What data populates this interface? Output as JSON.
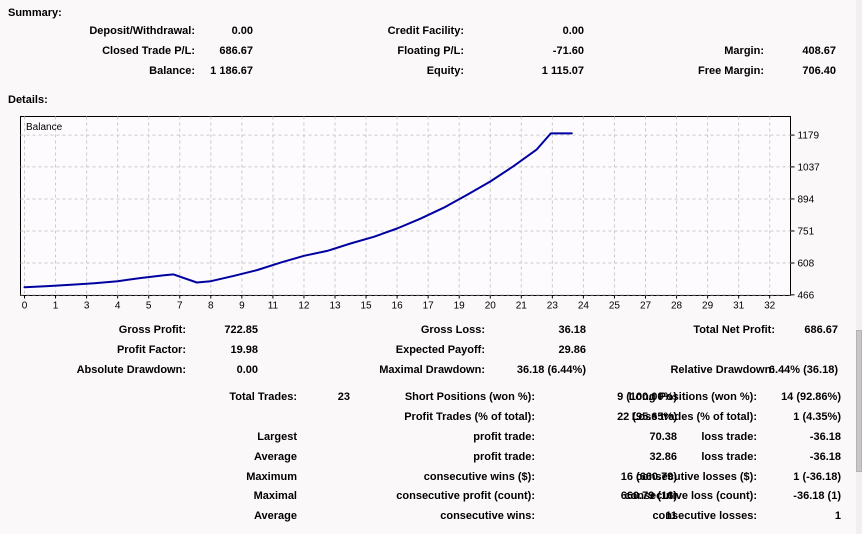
{
  "colors": {
    "curve": "#0000a0",
    "grid": "#c9c9c9",
    "plot_bg": "#fdfbfd",
    "plot_border": "#000000",
    "page_bg": "#fbf8fa"
  },
  "summary": {
    "heading": "Summary:",
    "rows": [
      [
        "Deposit/Withdrawal:",
        "0.00",
        "Credit Facility:",
        "0.00",
        "",
        ""
      ],
      [
        "Closed Trade P/L:",
        "686.67",
        "Floating P/L:",
        "-71.60",
        "Margin:",
        "408.67"
      ],
      [
        "Balance:",
        "1 186.67",
        "Equity:",
        "1 115.07",
        "Free Margin:",
        "706.40"
      ]
    ]
  },
  "details": {
    "heading": "Details:"
  },
  "stats_top": {
    "rows": [
      [
        "Gross Profit:",
        "722.85",
        "Gross Loss:",
        "36.18",
        "Total Net Profit:",
        "686.67"
      ],
      [
        "Profit Factor:",
        "19.98",
        "Expected Payoff:",
        "29.86",
        "",
        ""
      ],
      [
        "Absolute Drawdown:",
        "0.00",
        "Maximal Drawdown:",
        "36.18 (6.44%)",
        "Relative Drawdown:",
        "6.44% (36.18)"
      ]
    ]
  },
  "stats_bottom": {
    "rows": [
      [
        "Total Trades:",
        "23",
        "Short Positions (won %):",
        "9 (100.00%)",
        "Long Positions (won %):",
        "14 (92.86%)"
      ],
      [
        "",
        "",
        "Profit Trades (% of total):",
        "22 (95.65%)",
        "Loss trades (% of total):",
        "1 (4.35%)"
      ],
      [
        "Largest",
        "",
        "profit trade:",
        "70.38",
        "loss trade:",
        "-36.18"
      ],
      [
        "Average",
        "",
        "profit trade:",
        "32.86",
        "loss trade:",
        "-36.18"
      ],
      [
        "Maximum",
        "",
        "consecutive wins ($):",
        "16 (660.79)",
        "consecutive losses ($):",
        "1 (-36.18)"
      ],
      [
        "Maximal",
        "",
        "consecutive profit (count):",
        "660.79 (16)",
        "consecutive loss (count):",
        "-36.18 (1)"
      ],
      [
        "Average",
        "",
        "consecutive wins:",
        "11",
        "consecutive losses:",
        "1"
      ]
    ]
  },
  "chart_data": {
    "type": "line",
    "title": "Balance",
    "legend_position": "top-left-inside",
    "grid": true,
    "xlim": [
      0,
      32
    ],
    "ylim": [
      463,
      1262
    ],
    "x_tick_labels": [
      "0",
      "1",
      "3",
      "4",
      "5",
      "7",
      "8",
      "9",
      "11",
      "12",
      "13",
      "15",
      "16",
      "17",
      "19",
      "20",
      "21",
      "23",
      "24",
      "25",
      "27",
      "28",
      "29",
      "31",
      "32"
    ],
    "y_tick_values": [
      1179,
      1037,
      894,
      751,
      608,
      466
    ],
    "series": [
      {
        "name": "Balance",
        "x": [
          0,
          1,
          2,
          3,
          4,
          5,
          6,
          6.4,
          7.4,
          8,
          9,
          10,
          11,
          12,
          13,
          14,
          15,
          16,
          17,
          18,
          19,
          20,
          21,
          22,
          22.6,
          23.5
        ],
        "values": [
          500,
          505,
          511,
          518,
          527,
          541,
          553,
          557,
          521,
          527,
          551,
          577,
          610,
          640,
          662,
          695,
          725,
          762,
          806,
          855,
          912,
          972,
          1040,
          1115,
          1186.67,
          1186.67
        ]
      }
    ]
  }
}
